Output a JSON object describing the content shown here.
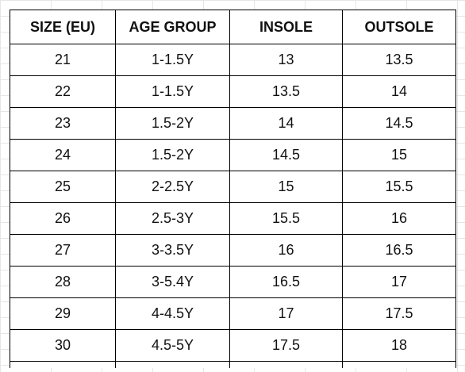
{
  "table": {
    "headers": [
      "SIZE (EU)",
      "AGE GROUP",
      "INSOLE",
      "OUTSOLE"
    ],
    "rows": [
      [
        "21",
        "1-1.5Y",
        "13",
        "13.5"
      ],
      [
        "22",
        "1-1.5Y",
        "13.5",
        "14"
      ],
      [
        "23",
        "1.5-2Y",
        "14",
        "14.5"
      ],
      [
        "24",
        "1.5-2Y",
        "14.5",
        "15"
      ],
      [
        "25",
        "2-2.5Y",
        "15",
        "15.5"
      ],
      [
        "26",
        "2.5-3Y",
        "15.5",
        "16"
      ],
      [
        "27",
        "3-3.5Y",
        "16",
        "16.5"
      ],
      [
        "28",
        "3-5.4Y",
        "16.5",
        "17"
      ],
      [
        "29",
        "4-4.5Y",
        "17",
        "17.5"
      ],
      [
        "30",
        "4.5-5Y",
        "17.5",
        "18"
      ]
    ]
  }
}
